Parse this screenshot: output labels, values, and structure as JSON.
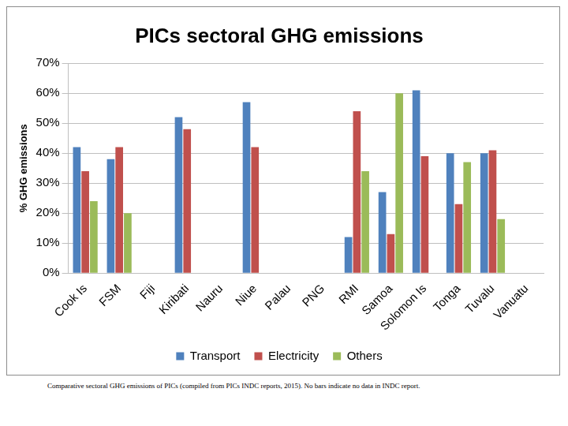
{
  "chart_data": {
    "type": "bar",
    "title": "PICs sectoral GHG emissions",
    "y_label": "% GHG emissions",
    "caption": "Comparative sectoral GHG emissions of PICs (compiled from PICs INDC reports, 2015). No bars indicate no data in INDC report.",
    "categories": [
      "Cook Is",
      "FSM",
      "Fiji",
      "Kiribati",
      "Nauru",
      "Niue",
      "Palau",
      "PNG",
      "RMI",
      "Samoa",
      "Solomon Is",
      "Tonga",
      "Tuvalu",
      "Vanuatu"
    ],
    "series": [
      {
        "name": "Transport",
        "color": "#4f81bd",
        "values": [
          42,
          38,
          0,
          52,
          0,
          57,
          0,
          0,
          12,
          27,
          61,
          40,
          40,
          0
        ]
      },
      {
        "name": "Electricity",
        "color": "#c0504d",
        "values": [
          34,
          42,
          0,
          48,
          0,
          42,
          0,
          0,
          54,
          13,
          39,
          23,
          41,
          0
        ]
      },
      {
        "name": "Others",
        "color": "#9bbb59",
        "values": [
          24,
          20,
          0,
          0,
          0,
          0,
          0,
          0,
          34,
          60,
          0,
          37,
          18,
          0
        ]
      }
    ],
    "ylim": [
      0,
      70
    ],
    "yticks": [
      {
        "value": 0,
        "label": "0%"
      },
      {
        "value": 10,
        "label": "10%"
      },
      {
        "value": 20,
        "label": "20%"
      },
      {
        "value": 30,
        "label": "30%"
      },
      {
        "value": 40,
        "label": "40%"
      },
      {
        "value": 50,
        "label": "50%"
      },
      {
        "value": 60,
        "label": "60%"
      },
      {
        "value": 70,
        "label": "70%"
      }
    ],
    "grid": true,
    "legend": "bottom"
  }
}
